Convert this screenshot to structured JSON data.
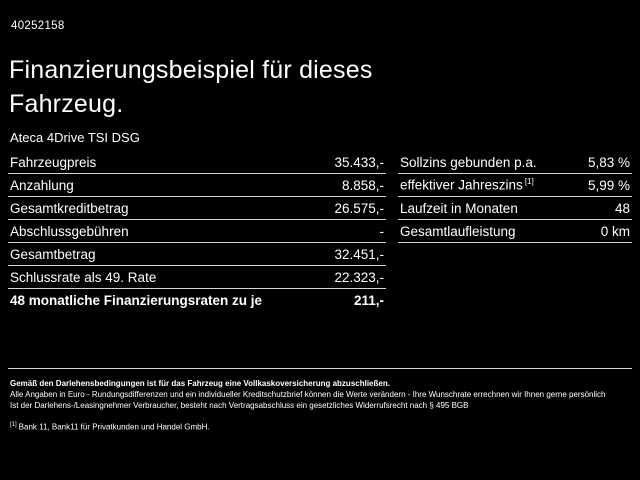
{
  "theme": {
    "background": "#000000",
    "text": "#ffffff",
    "divider": "#d6d6d6"
  },
  "header": {
    "vehicle_id": "40252158",
    "title_line1": "Finanzierungsbeispiel für dieses",
    "title_line2": "Fahrzeug.",
    "vehicle_name": "Ateca 4Drive TSI DSG"
  },
  "left_table": {
    "rows": [
      {
        "label": "Fahrzeugpreis",
        "value": "35.433,-"
      },
      {
        "label": "Anzahlung",
        "value": "8.858,-"
      },
      {
        "label": "Gesamtkreditbetrag",
        "value": "26.575,-"
      },
      {
        "label": "Abschlussgebühren",
        "value": "-"
      },
      {
        "label": "Gesamtbetrag",
        "value": "32.451,-"
      },
      {
        "label": "Schlussrate als 49. Rate",
        "value": "22.323,-"
      },
      {
        "label": "48 monatliche Finanzierungsraten zu je",
        "value": "211,-"
      }
    ]
  },
  "right_table": {
    "rows": [
      {
        "label": "Sollzins gebunden p.a.",
        "value": "5,83 %"
      },
      {
        "label": "effektiver Jahreszins",
        "ref": "[1]",
        "value": "5,99 %"
      },
      {
        "label": "Laufzeit in Monaten",
        "value": "48"
      },
      {
        "label": "Gesamtlaufleistung",
        "value": "0 km"
      }
    ]
  },
  "footer": {
    "insurance_note": "Gemäß den Darlehensbedingungen ist für das Fahrzeug eine Vollkaskoversicherung abzuschließen.",
    "disclaimer_line1": "Alle Angaben in Euro - Rundungsdifferenzen und ein individueller Kreditschutzbrief können die Werte verändern - Ihre Wunschrate errechnen wir Ihnen gerne persönlich",
    "disclaimer_line2": "Ist der Darlehens-/Leasingnehmer Verbraucher, besteht nach Vertragsabschluss ein gesetzliches Widerrufsrecht nach § 495 BGB",
    "bank_ref": "[1]",
    "bank_note": "Bank 11, Bank11 für Privatkunden und Handel GmbH."
  }
}
